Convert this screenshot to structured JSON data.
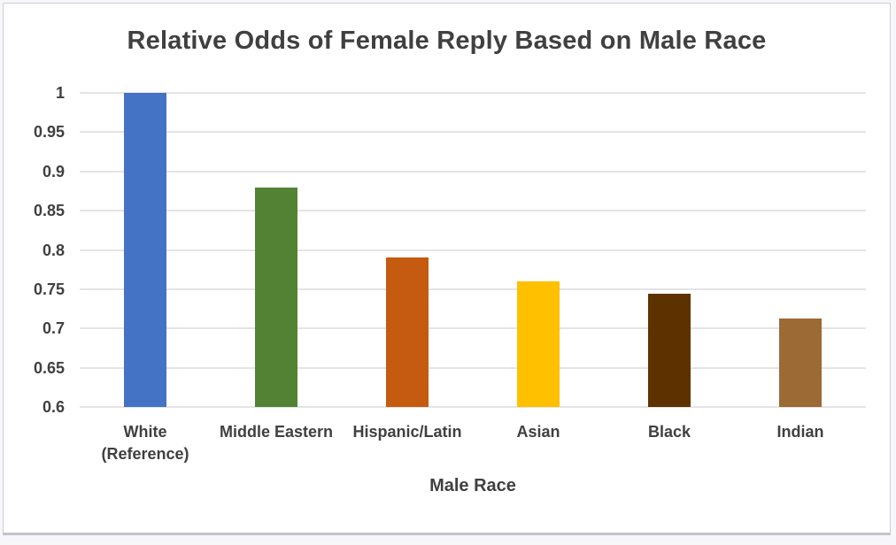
{
  "window": {
    "background_color": "#f7f7f9",
    "card_background": "#ffffff",
    "card_border_color": "#cdced5",
    "text_color": "#404040",
    "gridline_color": "#e4e4e6"
  },
  "chart_data": {
    "type": "bar",
    "title": "Relative Odds of Female Reply Based on Male Race",
    "xlabel": "Male Race",
    "ylabel": "",
    "categories": [
      "White (Reference)",
      "Middle Eastern",
      "Hispanic/Latin",
      "Asian",
      "Black",
      "Indian"
    ],
    "values": [
      1.0,
      0.88,
      0.79,
      0.76,
      0.744,
      0.713
    ],
    "bar_colors": [
      "#4472c4",
      "#548235",
      "#c55a11",
      "#ffc000",
      "#5e3200",
      "#9c6a35"
    ],
    "ylim": [
      0.6,
      1.0
    ],
    "yticks": [
      {
        "value": 1.0,
        "label": "1"
      },
      {
        "value": 0.95,
        "label": "0.95"
      },
      {
        "value": 0.9,
        "label": "0.9"
      },
      {
        "value": 0.85,
        "label": "0.85"
      },
      {
        "value": 0.8,
        "label": "0.8"
      },
      {
        "value": 0.75,
        "label": "0.75"
      },
      {
        "value": 0.7,
        "label": "0.7"
      },
      {
        "value": 0.65,
        "label": "0.65"
      },
      {
        "value": 0.6,
        "label": "0.6"
      }
    ],
    "grid": true,
    "legend": false
  }
}
